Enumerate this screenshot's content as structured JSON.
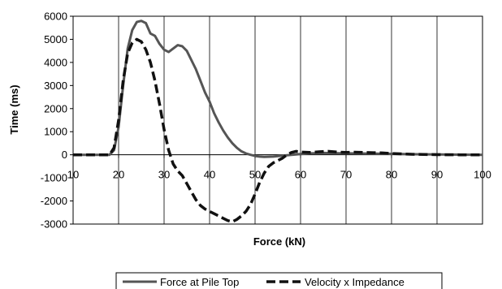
{
  "chart_data": {
    "type": "line",
    "xlabel": "Force (kN)",
    "ylabel": "Time (ms)",
    "xlim": [
      10,
      100
    ],
    "ylim": [
      -3000,
      6000
    ],
    "x_ticks": [
      "10",
      "20",
      "30",
      "40",
      "50",
      "60",
      "70",
      "80",
      "90",
      "100"
    ],
    "y_ticks": [
      "6000",
      "5000",
      "4000",
      "3000",
      "2000",
      "1000",
      "0",
      "-1000",
      "-2000",
      "-3000"
    ],
    "grid": "vertical",
    "legend_position": "bottom",
    "series": [
      {
        "name": "Force at Pile Top",
        "style": "solid",
        "color": "#555555",
        "points": [
          [
            10,
            0
          ],
          [
            18,
            0
          ],
          [
            19,
            200
          ],
          [
            20,
            1200
          ],
          [
            21,
            3000
          ],
          [
            22,
            4600
          ],
          [
            23,
            5400
          ],
          [
            24,
            5750
          ],
          [
            25,
            5800
          ],
          [
            26,
            5700
          ],
          [
            27,
            5250
          ],
          [
            28,
            5150
          ],
          [
            29,
            4800
          ],
          [
            30,
            4550
          ],
          [
            31,
            4450
          ],
          [
            32,
            4600
          ],
          [
            33,
            4750
          ],
          [
            34,
            4700
          ],
          [
            35,
            4500
          ],
          [
            36,
            4100
          ],
          [
            37,
            3700
          ],
          [
            38,
            3200
          ],
          [
            39,
            2700
          ],
          [
            40,
            2300
          ],
          [
            41,
            1800
          ],
          [
            42,
            1400
          ],
          [
            43,
            1050
          ],
          [
            44,
            750
          ],
          [
            45,
            500
          ],
          [
            46,
            300
          ],
          [
            47,
            150
          ],
          [
            48,
            60
          ],
          [
            49,
            0
          ],
          [
            50,
            -50
          ],
          [
            51,
            -80
          ],
          [
            52,
            -90
          ],
          [
            54,
            -80
          ],
          [
            56,
            -40
          ],
          [
            58,
            0
          ],
          [
            60,
            30
          ],
          [
            62,
            60
          ],
          [
            65,
            80
          ],
          [
            68,
            70
          ],
          [
            72,
            60
          ],
          [
            76,
            50
          ],
          [
            80,
            40
          ],
          [
            85,
            25
          ],
          [
            90,
            15
          ],
          [
            95,
            5
          ],
          [
            100,
            0
          ]
        ]
      },
      {
        "name": "Velocity x Impedance",
        "style": "dashed",
        "color": "#111111",
        "points": [
          [
            10,
            0
          ],
          [
            18,
            0
          ],
          [
            19,
            300
          ],
          [
            20,
            1500
          ],
          [
            21,
            3200
          ],
          [
            22,
            4400
          ],
          [
            23,
            4850
          ],
          [
            24,
            5000
          ],
          [
            25,
            4900
          ],
          [
            26,
            4550
          ],
          [
            27,
            4000
          ],
          [
            28,
            3200
          ],
          [
            29,
            2200
          ],
          [
            30,
            1100
          ],
          [
            31,
            200
          ],
          [
            32,
            -400
          ],
          [
            33,
            -700
          ],
          [
            34,
            -900
          ],
          [
            35,
            -1250
          ],
          [
            36,
            -1600
          ],
          [
            37,
            -1950
          ],
          [
            38,
            -2200
          ],
          [
            39,
            -2350
          ],
          [
            40,
            -2450
          ],
          [
            41,
            -2550
          ],
          [
            42,
            -2650
          ],
          [
            43,
            -2750
          ],
          [
            44,
            -2850
          ],
          [
            45,
            -2900
          ],
          [
            46,
            -2800
          ],
          [
            47,
            -2650
          ],
          [
            48,
            -2450
          ],
          [
            49,
            -2150
          ],
          [
            50,
            -1700
          ],
          [
            51,
            -1200
          ],
          [
            52,
            -800
          ],
          [
            53,
            -500
          ],
          [
            54,
            -350
          ],
          [
            55,
            -250
          ],
          [
            56,
            -150
          ],
          [
            57,
            0
          ],
          [
            58,
            100
          ],
          [
            59,
            150
          ],
          [
            60,
            120
          ],
          [
            62,
            100
          ],
          [
            64,
            130
          ],
          [
            66,
            150
          ],
          [
            68,
            120
          ],
          [
            70,
            100
          ],
          [
            72,
            110
          ],
          [
            74,
            100
          ],
          [
            76,
            90
          ],
          [
            78,
            80
          ],
          [
            80,
            60
          ],
          [
            82,
            40
          ],
          [
            85,
            20
          ],
          [
            90,
            5
          ],
          [
            95,
            0
          ],
          [
            100,
            0
          ]
        ]
      }
    ]
  }
}
